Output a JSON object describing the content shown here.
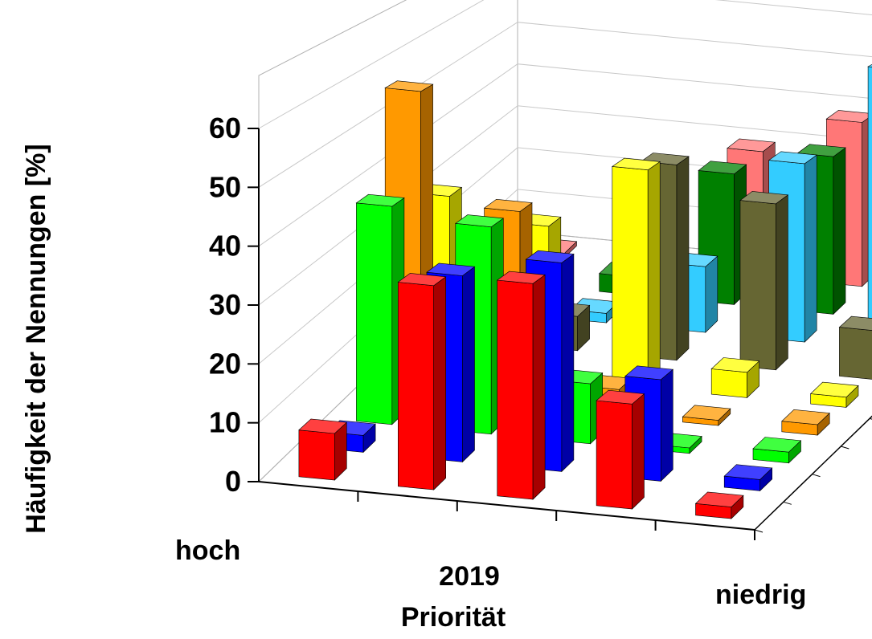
{
  "chart_data": {
    "type": "bar",
    "subtype": "3d-column",
    "y_axis_label": "Häufigkeit der Nennungen [%]",
    "x_axis_label_line1": "2019",
    "x_axis_label_line2": "Priorität",
    "x_left_label": "hoch",
    "x_right_label": "niedrig",
    "ylim": [
      0,
      60
    ],
    "y_ticks": [
      "0",
      "10",
      "20",
      "30",
      "40",
      "50",
      "60"
    ],
    "grid": true,
    "categories_x": 5,
    "series": [
      {
        "color": "#ff0000",
        "values": [
          8,
          35,
          37,
          18,
          2
        ]
      },
      {
        "color": "#0000ff",
        "values": [
          3,
          33,
          37,
          18,
          2
        ]
      },
      {
        "color": "#00ff00",
        "values": [
          40,
          38,
          11,
          1,
          2
        ]
      },
      {
        "color": "#ff9900",
        "values": [
          58,
          37,
          5,
          1,
          2
        ]
      },
      {
        "color": "#ffff00",
        "values": [
          34,
          30,
          43,
          5,
          2
        ]
      },
      {
        "color": "#666633",
        "values": [
          1,
          7,
          40,
          34,
          10
        ]
      },
      {
        "color": "#33ccff",
        "values": [
          2,
          2,
          14,
          38,
          60
        ]
      },
      {
        "color": "#008000",
        "values": [
          1,
          4,
          29,
          35,
          5
        ]
      },
      {
        "color": "#ff7777",
        "values": [
          1,
          1,
          29,
          38,
          7
        ]
      }
    ]
  }
}
